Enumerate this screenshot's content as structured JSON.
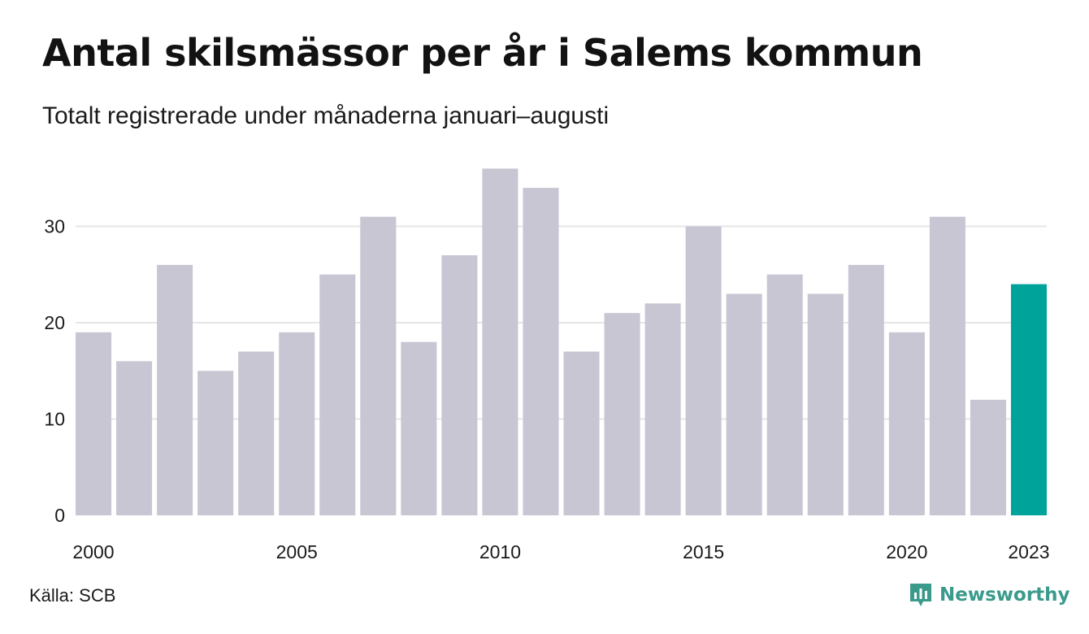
{
  "header": {
    "title": "Antal skilsmässor per år i Salems kommun",
    "subtitle": "Totalt registrerade under månaderna januari–augusti"
  },
  "footer": {
    "source": "Källa: SCB",
    "brand": "Newsworthy",
    "brand_icon": "newsworthy-logo-icon"
  },
  "colors": {
    "bar": "#c8c6d3",
    "highlight": "#00a39a",
    "grid": "#e6e6e6",
    "brand": "#3a9a8c"
  },
  "chart_data": {
    "type": "bar",
    "categories": [
      2000,
      2001,
      2002,
      2003,
      2004,
      2005,
      2006,
      2007,
      2008,
      2009,
      2010,
      2011,
      2012,
      2013,
      2014,
      2015,
      2016,
      2017,
      2018,
      2019,
      2020,
      2021,
      2022,
      2023
    ],
    "values": [
      19,
      16,
      26,
      15,
      17,
      19,
      25,
      31,
      18,
      27,
      36,
      34,
      17,
      21,
      22,
      30,
      23,
      25,
      23,
      26,
      19,
      31,
      12,
      24
    ],
    "highlight_category": 2023,
    "ylim": [
      0,
      36
    ],
    "yticks": [
      0,
      10,
      20,
      30
    ],
    "xticks": [
      2000,
      2005,
      2010,
      2015,
      2020,
      2023
    ],
    "grid": true,
    "title": "Antal skilsmässor per år i Salems kommun",
    "subtitle": "Totalt registrerade under månaderna januari–augusti",
    "xlabel": "",
    "ylabel": ""
  }
}
